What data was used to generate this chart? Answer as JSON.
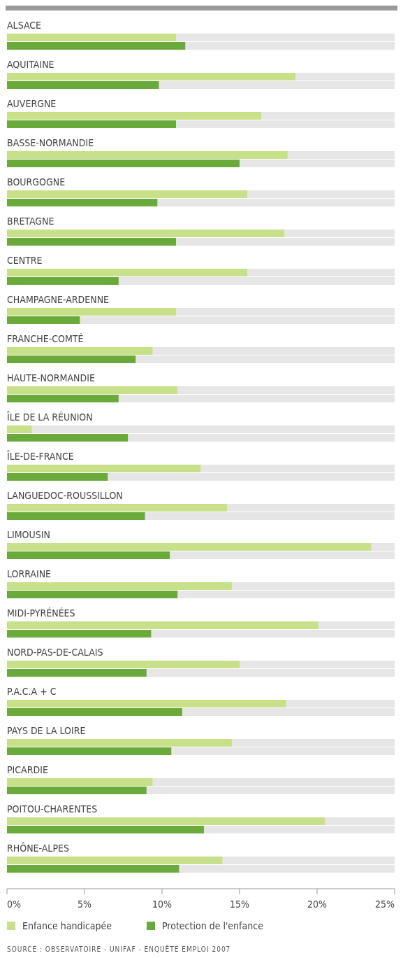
{
  "chart_data": {
    "type": "bar",
    "orientation": "horizontal",
    "categories": [
      "ALSACE",
      "AQUITAINE",
      "AUVERGNE",
      "BASSE-NORMANDIE",
      "BOURGOGNE",
      "BRETAGNE",
      "CENTRE",
      "CHAMPAGNE-ARDENNE",
      "FRANCHE-COMTÉ",
      "HAUTE-NORMANDIE",
      "ÎLE DE LA RÉUNION",
      "ÎLE-DE-FRANCE",
      "LANGUEDOC-ROUSSILLON",
      "LIMOUSIN",
      "LORRAINE",
      "MIDI-PYRÉNÉES",
      "NORD-PAS-DE-CALAIS",
      "P.A.C.A + C",
      "PAYS DE LA LOIRE",
      "PICARDIE",
      "POITOU-CHARENTES",
      "RHÔNE-ALPES"
    ],
    "series": [
      {
        "name": "Enfance handicapée",
        "color": "#c8e08a",
        "values": [
          10.9,
          18.6,
          16.4,
          18.1,
          15.5,
          17.9,
          15.5,
          10.9,
          9.4,
          11.0,
          1.6,
          12.5,
          14.2,
          23.5,
          14.5,
          20.1,
          15.0,
          18.0,
          14.5,
          9.4,
          20.5,
          13.9
        ]
      },
      {
        "name": "Protection de l'enfance",
        "color": "#6aaa3a",
        "values": [
          11.5,
          9.8,
          10.9,
          15.0,
          9.7,
          10.9,
          7.2,
          4.7,
          8.3,
          7.2,
          7.8,
          6.5,
          8.9,
          10.5,
          11.0,
          9.3,
          9.0,
          11.3,
          10.6,
          9.0,
          12.7,
          11.1
        ]
      }
    ],
    "xlim": [
      0,
      25
    ],
    "xticks": [
      {
        "value": 0,
        "label": "0%"
      },
      {
        "value": 5,
        "label": "5%"
      },
      {
        "value": 10,
        "label": "10%"
      },
      {
        "value": 15,
        "label": "15%"
      },
      {
        "value": 20,
        "label": "20%"
      },
      {
        "value": 25,
        "label": "25%"
      }
    ],
    "legend": "bottom",
    "annotations": [
      "SOURCE : OBSERVATOIRE - UNIFAF - ENQUÊTE EMPLOI 2007"
    ]
  }
}
